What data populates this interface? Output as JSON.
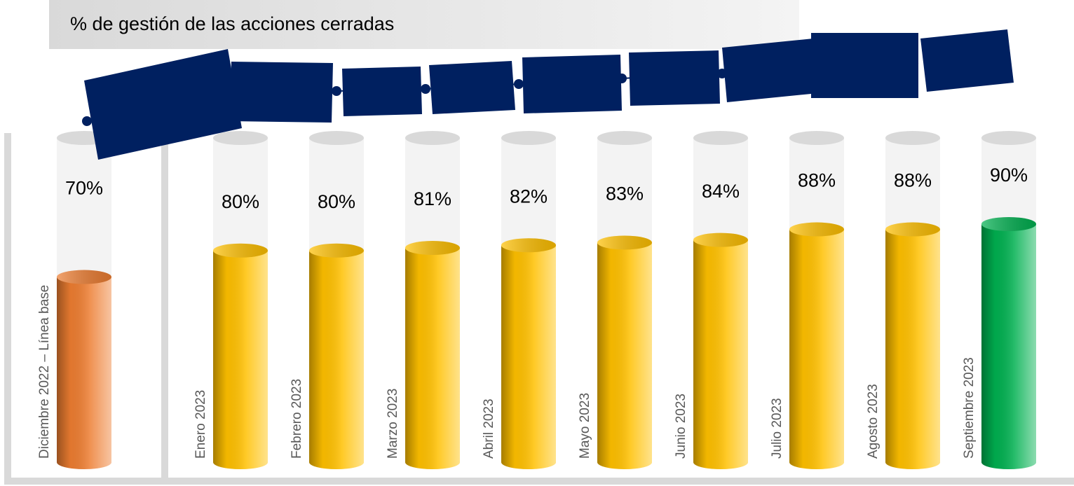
{
  "chart_data": {
    "type": "cylinder-bar",
    "title": "% de gestión de las acciones cerradas",
    "categories": [
      "Diciembre 2022 – Línea base",
      "Enero 2023",
      "Febrero 2023",
      "Marzo 2023",
      "Abril 2023",
      "Mayo 2023",
      "Junio 2023",
      "Julio 2023",
      "Agosto 2023",
      "Septiembre 2023"
    ],
    "values": [
      70,
      80,
      80,
      81,
      82,
      83,
      84,
      88,
      88,
      90
    ],
    "value_labels": [
      "70%",
      "80%",
      "80%",
      "81%",
      "82%",
      "83%",
      "84%",
      "88%",
      "88%",
      "90%"
    ],
    "colors": [
      "#ed7d31",
      "#ffc000",
      "#ffc000",
      "#ffc000",
      "#ffc000",
      "#ffc000",
      "#ffc000",
      "#ffc000",
      "#ffc000",
      "#00b050"
    ]
  }
}
